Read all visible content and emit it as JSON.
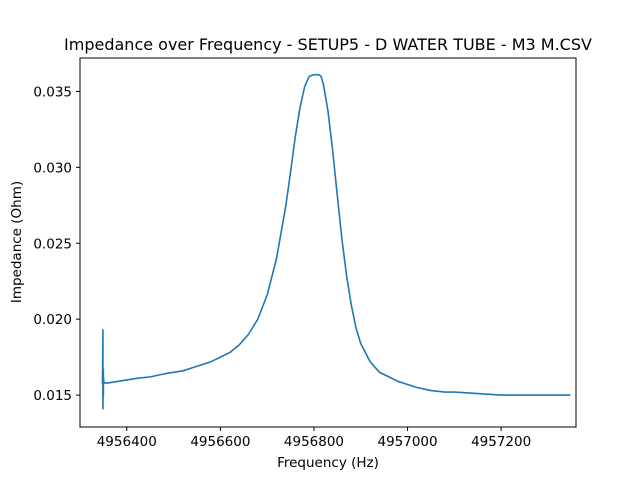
{
  "chart_data": {
    "type": "line",
    "title": "Impedance over Frequency - SETUP5 - D WATER TUBE - M3 M.CSV",
    "xlabel": "Frequency (Hz)",
    "ylabel": "Impedance (Ohm)",
    "xlim": [
      4956300,
      4957360
    ],
    "ylim": [
      0.0129,
      0.0372
    ],
    "x_ticks": [
      4956400,
      4956600,
      4956800,
      4957000,
      4957200
    ],
    "x_tick_labels": [
      "4956400",
      "4956600",
      "4956800",
      "4957000",
      "4957200"
    ],
    "y_ticks": [
      0.015,
      0.02,
      0.025,
      0.03,
      0.035
    ],
    "y_tick_labels": [
      "0.015",
      "0.020",
      "0.025",
      "0.030",
      "0.035"
    ],
    "grid": false,
    "legend": "none",
    "series_color": "#1f77b4",
    "series": [
      {
        "x": [
          4956348,
          4956349,
          4956349,
          4956350,
          4956350,
          4956350,
          4956351,
          4956352,
          4956360,
          4956380,
          4956400,
          4956420,
          4956450,
          4956480,
          4956500,
          4956520,
          4956540,
          4956560,
          4956580,
          4956600,
          4956620,
          4956640,
          4956660,
          4956680,
          4956700,
          4956720,
          4956740,
          4956750,
          4956760,
          4956770,
          4956780,
          4956790,
          4956800,
          4956805,
          4956810,
          4956815,
          4956820,
          4956830,
          4956840,
          4956850,
          4956860,
          4956870,
          4956880,
          4956890,
          4956900,
          4956920,
          4956940,
          4956960,
          4956980,
          4957000,
          4957020,
          4957050,
          4957080,
          4957100,
          4957150,
          4957200,
          4957250,
          4957300,
          4957347
        ],
        "y": [
          0.0158,
          0.0193,
          0.0141,
          0.0167,
          0.0149,
          0.0163,
          0.0158,
          0.0158,
          0.0158,
          0.0159,
          0.016,
          0.0161,
          0.0162,
          0.0164,
          0.0165,
          0.0166,
          0.0168,
          0.017,
          0.0172,
          0.0175,
          0.0178,
          0.0183,
          0.019,
          0.02,
          0.0216,
          0.024,
          0.0275,
          0.0297,
          0.032,
          0.0339,
          0.0353,
          0.036,
          0.0361,
          0.0361,
          0.0361,
          0.036,
          0.0355,
          0.0337,
          0.0311,
          0.0281,
          0.0252,
          0.0228,
          0.0209,
          0.0194,
          0.0184,
          0.0172,
          0.0165,
          0.0162,
          0.0159,
          0.0157,
          0.0155,
          0.0153,
          0.0152,
          0.0152,
          0.0151,
          0.015,
          0.015,
          0.015,
          0.015
        ]
      }
    ]
  }
}
